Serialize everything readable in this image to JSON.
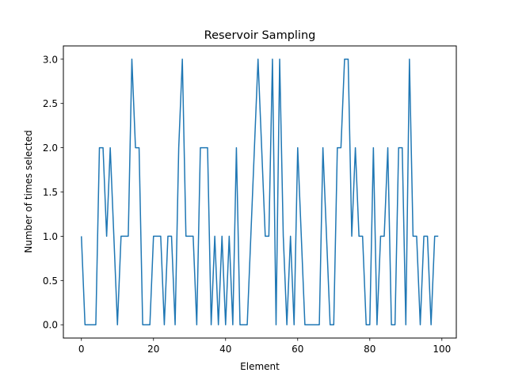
{
  "chart_data": {
    "type": "line",
    "title": "Reservoir Sampling",
    "xlabel": "Element",
    "ylabel": "Number of times selected",
    "xlim": [
      -5,
      104
    ],
    "ylim": [
      -0.15,
      3.15
    ],
    "xticks": [
      0,
      20,
      40,
      60,
      80,
      100
    ],
    "xtick_labels": [
      "0",
      "20",
      "40",
      "60",
      "80",
      "100"
    ],
    "yticks": [
      0,
      0.5,
      1,
      1.5,
      2,
      2.5,
      3
    ],
    "ytick_labels": [
      "0.0",
      "0.5",
      "1.0",
      "1.5",
      "2.0",
      "2.5",
      "3.0"
    ],
    "grid": false,
    "series": [
      {
        "color": "#1f77b4",
        "x": [
          0,
          1,
          2,
          3,
          4,
          5,
          6,
          7,
          8,
          9,
          10,
          11,
          12,
          13,
          14,
          15,
          16,
          17,
          18,
          19,
          20,
          21,
          22,
          23,
          24,
          25,
          26,
          27,
          28,
          29,
          30,
          31,
          32,
          33,
          34,
          35,
          36,
          37,
          38,
          39,
          40,
          41,
          42,
          43,
          44,
          45,
          46,
          47,
          48,
          49,
          50,
          51,
          52,
          53,
          54,
          55,
          56,
          57,
          58,
          59,
          60,
          61,
          62,
          63,
          64,
          65,
          66,
          67,
          68,
          69,
          70,
          71,
          72,
          73,
          74,
          75,
          76,
          77,
          78,
          79,
          80,
          81,
          82,
          83,
          84,
          85,
          86,
          87,
          88,
          89,
          90,
          91,
          92,
          93,
          94,
          95,
          96,
          97,
          98,
          99
        ],
        "y": [
          1,
          0,
          0,
          0,
          0,
          2,
          2,
          1,
          2,
          1,
          0,
          1,
          1,
          1,
          3,
          2,
          2,
          0,
          0,
          0,
          1,
          1,
          1,
          0,
          1,
          1,
          0,
          2,
          3,
          1,
          1,
          1,
          0,
          2,
          2,
          2,
          0,
          1,
          0,
          1,
          0,
          1,
          0,
          2,
          0,
          0,
          0,
          1,
          2,
          3,
          2,
          1,
          1,
          3,
          0,
          3,
          1,
          0,
          1,
          0,
          2,
          1,
          0,
          0,
          0,
          0,
          0,
          2,
          1,
          0,
          0,
          2,
          2,
          3,
          3,
          1,
          2,
          1,
          1,
          0,
          0,
          2,
          0,
          1,
          1,
          2,
          0,
          0,
          2,
          2,
          0,
          3,
          1,
          1,
          0,
          1,
          1,
          0,
          1,
          1
        ]
      }
    ]
  }
}
